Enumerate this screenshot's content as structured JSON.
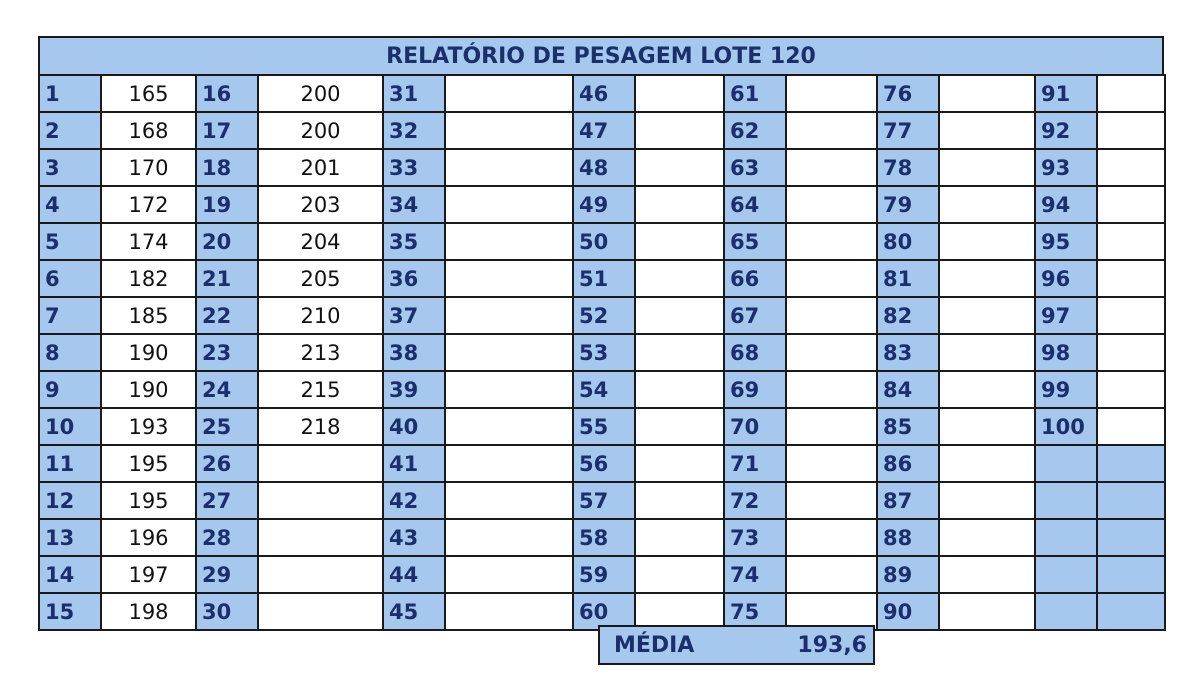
{
  "title": "RELATÓRIO DE PESAGEM LOTE 120",
  "columns": [
    {
      "numbers": [
        "1",
        "2",
        "3",
        "4",
        "5",
        "6",
        "7",
        "8",
        "9",
        "10",
        "11",
        "12",
        "13",
        "14",
        "15"
      ],
      "values": [
        "165",
        "168",
        "170",
        "172",
        "174",
        "182",
        "185",
        "190",
        "190",
        "193",
        "195",
        "195",
        "196",
        "197",
        "198"
      ]
    },
    {
      "numbers": [
        "16",
        "17",
        "18",
        "19",
        "20",
        "21",
        "22",
        "23",
        "24",
        "25",
        "26",
        "27",
        "28",
        "29",
        "30"
      ],
      "values": [
        "200",
        "200",
        "201",
        "203",
        "204",
        "205",
        "210",
        "213",
        "215",
        "218",
        "",
        "",
        "",
        "",
        ""
      ]
    },
    {
      "numbers": [
        "31",
        "32",
        "33",
        "34",
        "35",
        "36",
        "37",
        "38",
        "39",
        "40",
        "41",
        "42",
        "43",
        "44",
        "45"
      ],
      "values": [
        "",
        "",
        "",
        "",
        "",
        "",
        "",
        "",
        "",
        "",
        "",
        "",
        "",
        "",
        ""
      ]
    },
    {
      "numbers": [
        "46",
        "47",
        "48",
        "49",
        "50",
        "51",
        "52",
        "53",
        "54",
        "55",
        "56",
        "57",
        "58",
        "59",
        "60"
      ],
      "values": [
        "",
        "",
        "",
        "",
        "",
        "",
        "",
        "",
        "",
        "",
        "",
        "",
        "",
        "",
        ""
      ]
    },
    {
      "numbers": [
        "61",
        "62",
        "63",
        "64",
        "65",
        "66",
        "67",
        "68",
        "69",
        "70",
        "71",
        "72",
        "73",
        "74",
        "75"
      ],
      "values": [
        "",
        "",
        "",
        "",
        "",
        "",
        "",
        "",
        "",
        "",
        "",
        "",
        "",
        "",
        ""
      ]
    },
    {
      "numbers": [
        "76",
        "77",
        "78",
        "79",
        "80",
        "81",
        "82",
        "83",
        "84",
        "85",
        "86",
        "87",
        "88",
        "89",
        "90"
      ],
      "values": [
        "",
        "",
        "",
        "",
        "",
        "",
        "",
        "",
        "",
        "",
        "",
        "",
        "",
        "",
        ""
      ]
    },
    {
      "numbers": [
        "91",
        "92",
        "93",
        "94",
        "95",
        "96",
        "97",
        "98",
        "99",
        "100",
        "",
        "",
        "",
        "",
        ""
      ],
      "values": [
        "",
        "",
        "",
        "",
        "",
        "",
        "",
        "",
        "",
        "",
        "",
        "",
        "",
        "",
        ""
      ]
    }
  ],
  "summary": {
    "label": "MÉDIA",
    "value": "193,6"
  },
  "colors": {
    "header_fill": "#a6c8ee",
    "number_text": "#1b2f6b",
    "border": "#1a1a1a"
  }
}
